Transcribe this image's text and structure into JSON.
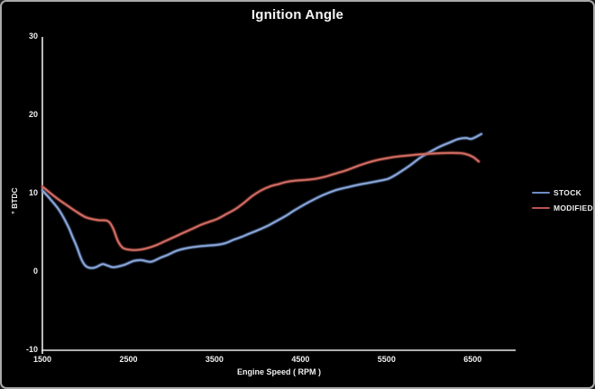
{
  "frame": {
    "background": "#000000",
    "border_color": "#a9a9a9"
  },
  "chart": {
    "title": "Ignition Angle",
    "x_axis_title": "Engine Speed ( RPM )",
    "y_axis_title": "° BTDC",
    "text_color": "#efefef",
    "axis_color": "#e9e9e9"
  },
  "legend": {
    "items": [
      {
        "label": "STOCK",
        "color": "#6d8dc4"
      },
      {
        "label": "MODIFIED",
        "color": "#bb544c"
      }
    ]
  },
  "chart_data": {
    "type": "line",
    "title": "Ignition Angle",
    "xlabel": "Engine Speed ( RPM )",
    "ylabel": "° BTDC",
    "xlim": [
      1500,
      7000
    ],
    "ylim": [
      -10,
      30
    ],
    "x_ticks": [
      1500,
      2500,
      3500,
      4500,
      5500,
      6500
    ],
    "y_ticks": [
      30,
      20,
      10,
      0,
      -10
    ],
    "grid": false,
    "legend_position": "right",
    "background": "#000000",
    "series": [
      {
        "name": "STOCK",
        "color": "#6d8dc4",
        "highlight": "#9db4dd",
        "points": [
          [
            1500,
            10.4
          ],
          [
            1600,
            9.2
          ],
          [
            1700,
            7.8
          ],
          [
            1800,
            5.8
          ],
          [
            1850,
            4.5
          ],
          [
            1900,
            3.2
          ],
          [
            1950,
            1.7
          ],
          [
            2000,
            0.8
          ],
          [
            2060,
            0.5
          ],
          [
            2120,
            0.6
          ],
          [
            2200,
            1.0
          ],
          [
            2260,
            0.8
          ],
          [
            2330,
            0.6
          ],
          [
            2450,
            0.9
          ],
          [
            2560,
            1.4
          ],
          [
            2650,
            1.5
          ],
          [
            2760,
            1.3
          ],
          [
            2870,
            1.8
          ],
          [
            2960,
            2.2
          ],
          [
            3060,
            2.7
          ],
          [
            3160,
            3.0
          ],
          [
            3270,
            3.2
          ],
          [
            3400,
            3.35
          ],
          [
            3520,
            3.45
          ],
          [
            3620,
            3.65
          ],
          [
            3720,
            4.1
          ],
          [
            3820,
            4.5
          ],
          [
            3920,
            4.95
          ],
          [
            4020,
            5.4
          ],
          [
            4120,
            5.9
          ],
          [
            4220,
            6.5
          ],
          [
            4320,
            7.1
          ],
          [
            4420,
            7.8
          ],
          [
            4520,
            8.45
          ],
          [
            4620,
            9.05
          ],
          [
            4760,
            9.8
          ],
          [
            4900,
            10.4
          ],
          [
            5020,
            10.75
          ],
          [
            5160,
            11.1
          ],
          [
            5280,
            11.35
          ],
          [
            5400,
            11.6
          ],
          [
            5520,
            11.9
          ],
          [
            5620,
            12.5
          ],
          [
            5760,
            13.5
          ],
          [
            5880,
            14.5
          ],
          [
            6000,
            15.3
          ],
          [
            6120,
            16.0
          ],
          [
            6240,
            16.55
          ],
          [
            6330,
            16.95
          ],
          [
            6420,
            17.1
          ],
          [
            6490,
            17.0
          ],
          [
            6600,
            17.6
          ]
        ]
      },
      {
        "name": "MODIFIED",
        "color": "#bb544c",
        "highlight": "#d58176",
        "points": [
          [
            1500,
            10.9
          ],
          [
            1600,
            10.0
          ],
          [
            1700,
            9.15
          ],
          [
            1800,
            8.4
          ],
          [
            1900,
            7.65
          ],
          [
            2000,
            7.0
          ],
          [
            2080,
            6.75
          ],
          [
            2160,
            6.6
          ],
          [
            2260,
            6.5
          ],
          [
            2320,
            5.6
          ],
          [
            2380,
            3.9
          ],
          [
            2440,
            3.05
          ],
          [
            2540,
            2.8
          ],
          [
            2640,
            2.85
          ],
          [
            2740,
            3.1
          ],
          [
            2840,
            3.5
          ],
          [
            2940,
            4.0
          ],
          [
            3040,
            4.5
          ],
          [
            3140,
            5.0
          ],
          [
            3240,
            5.5
          ],
          [
            3340,
            6.0
          ],
          [
            3440,
            6.4
          ],
          [
            3540,
            6.8
          ],
          [
            3640,
            7.4
          ],
          [
            3740,
            8.0
          ],
          [
            3840,
            8.8
          ],
          [
            3940,
            9.7
          ],
          [
            4040,
            10.4
          ],
          [
            4140,
            10.9
          ],
          [
            4240,
            11.2
          ],
          [
            4340,
            11.5
          ],
          [
            4440,
            11.65
          ],
          [
            4560,
            11.75
          ],
          [
            4680,
            11.9
          ],
          [
            4800,
            12.2
          ],
          [
            4920,
            12.6
          ],
          [
            5040,
            13.0
          ],
          [
            5160,
            13.5
          ],
          [
            5280,
            13.95
          ],
          [
            5400,
            14.3
          ],
          [
            5520,
            14.55
          ],
          [
            5640,
            14.75
          ],
          [
            5780,
            14.9
          ],
          [
            5940,
            15.05
          ],
          [
            6100,
            15.15
          ],
          [
            6260,
            15.2
          ],
          [
            6400,
            15.1
          ],
          [
            6500,
            14.7
          ],
          [
            6570,
            14.1
          ]
        ]
      }
    ]
  }
}
